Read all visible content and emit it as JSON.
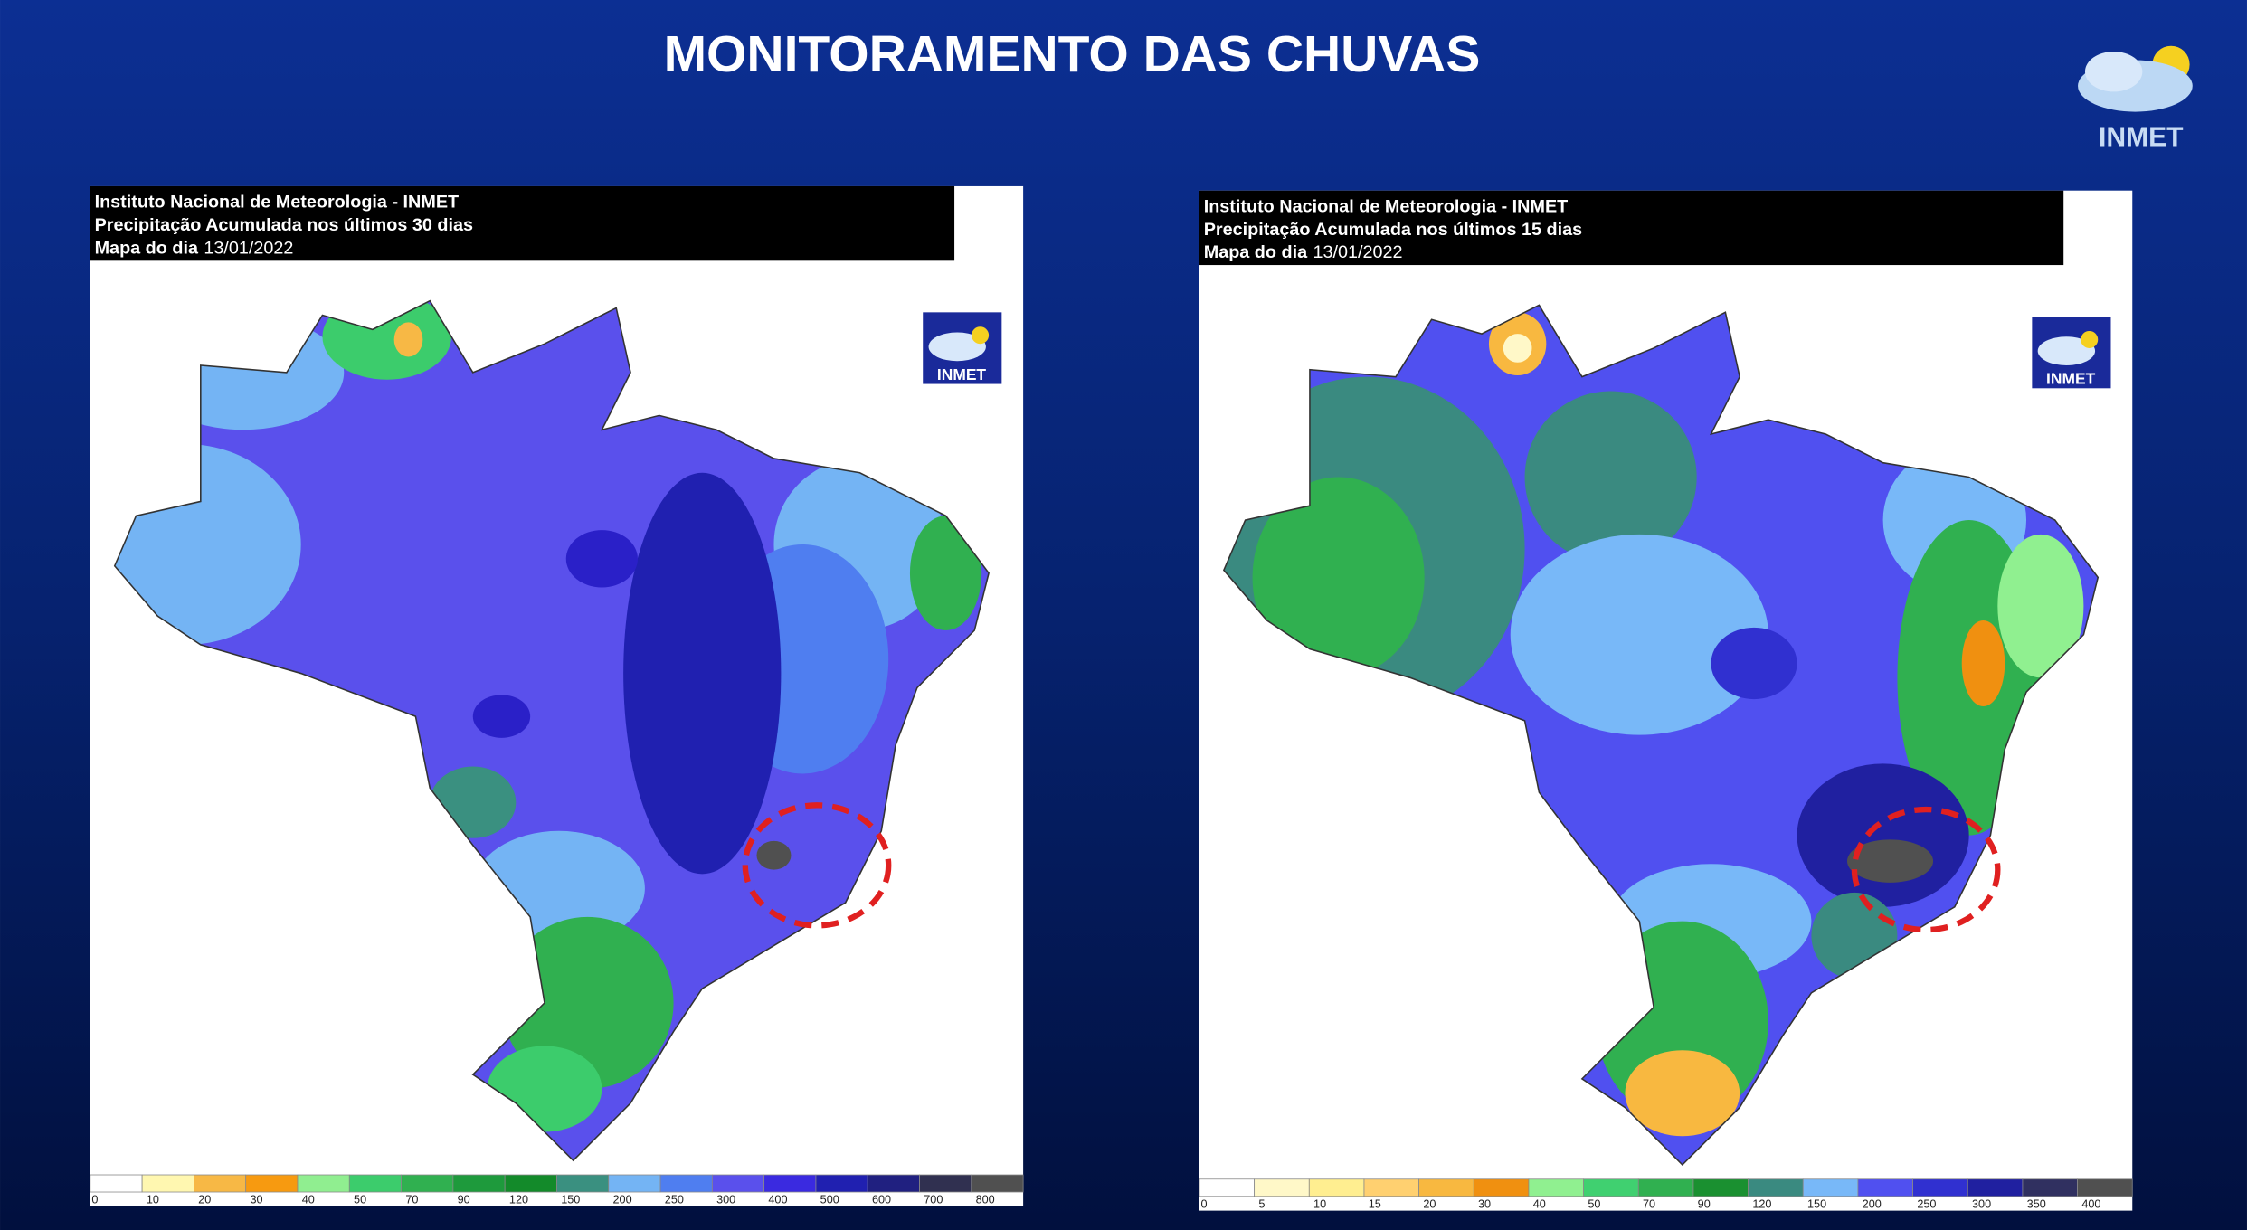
{
  "title": "MONITORAMENTO DAS CHUVAS",
  "logo": "INMET",
  "maps": [
    {
      "header": [
        "Instituto Nacional de Meteorologia - INMET",
        "Precipitação Acumulada nos últimos 30 dias"
      ],
      "date_label": "Mapa do dia",
      "date": "13/01/2022",
      "logo": "INMET",
      "legend": {
        "ticks": [
          0,
          10,
          20,
          30,
          40,
          50,
          70,
          90,
          120,
          150,
          200,
          250,
          300,
          400,
          500,
          600,
          700,
          800
        ],
        "colors": [
          "#ffffff",
          "#fff7b0",
          "#f7b845",
          "#f79a10",
          "#90ee90",
          "#3ccc6c",
          "#30b050",
          "#1e9a3c",
          "#138a2a",
          "#3a9080",
          "#74b4f4",
          "#4f7ef0",
          "#5a50ec",
          "#3a2ae0",
          "#2020b0",
          "#202080",
          "#303050",
          "#505050"
        ]
      }
    },
    {
      "header": [
        "Instituto Nacional de Meteorologia - INMET",
        "Precipitação Acumulada nos últimos 15 dias"
      ],
      "date_label": "Mapa do dia",
      "date": "13/01/2022",
      "logo": "INMET",
      "legend": {
        "ticks": [
          0,
          5,
          10,
          15,
          20,
          30,
          40,
          50,
          70,
          90,
          120,
          150,
          200,
          250,
          300,
          350,
          400
        ],
        "colors": [
          "#ffffff",
          "#fff8c8",
          "#ffee90",
          "#ffd070",
          "#f8b840",
          "#f09010",
          "#90f090",
          "#40d070",
          "#30b050",
          "#1a9030",
          "#3a8a80",
          "#78b8f8",
          "#5050f0",
          "#3030d0",
          "#2020a0",
          "#303060",
          "#505050"
        ]
      }
    }
  ]
}
